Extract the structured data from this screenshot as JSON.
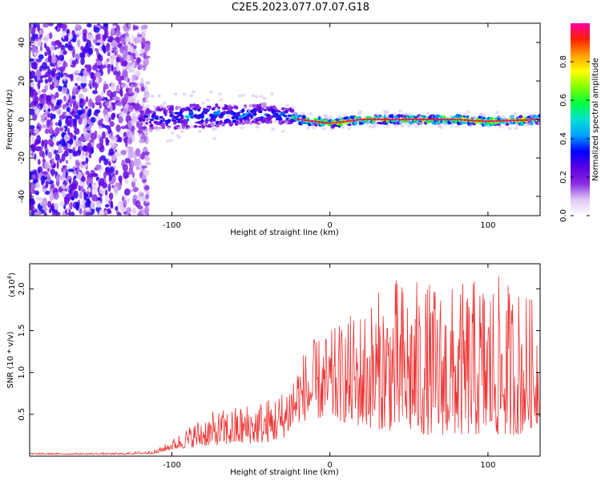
{
  "figure": {
    "title": "C2E5.2023.077.07.07.G18"
  },
  "chart_data": [
    {
      "type": "heatmap",
      "name": "spectrogram",
      "xlabel": "Height of straight line (km)",
      "ylabel": "Frequency (Hz)",
      "xlim": [
        -190,
        133
      ],
      "ylim": [
        -50,
        50
      ],
      "xticks": [
        -100,
        0,
        100
      ],
      "yticks": [
        -40,
        -20,
        0,
        20,
        40
      ],
      "grid": false,
      "colorbar": {
        "label": "Normalized spectral amplitude",
        "range": [
          0.0,
          1.0
        ],
        "ticks": [
          0.0,
          0.2,
          0.4,
          0.6,
          0.8
        ],
        "tick_labels": [
          "0.0",
          "0.2",
          "0.4",
          "0.6",
          "0.8"
        ],
        "colors": [
          "#ffffff",
          "#ddc8f4",
          "#8a2be2",
          "#5a00e0",
          "#0000ff",
          "#00a0ff",
          "#00e0d0",
          "#00ff40",
          "#80ff00",
          "#ffff00",
          "#ffa000",
          "#ff2000",
          "#ff00a0"
        ]
      },
      "signal": [
        {
          "x": -120,
          "center_hz": 0,
          "halfwidth_hz": 6,
          "amp": 0.3
        },
        {
          "x": -100,
          "center_hz": 1,
          "halfwidth_hz": 6,
          "amp": 0.4
        },
        {
          "x": -80,
          "center_hz": 2,
          "halfwidth_hz": 6,
          "amp": 0.45
        },
        {
          "x": -60,
          "center_hz": 2,
          "halfwidth_hz": 5,
          "amp": 0.45
        },
        {
          "x": -40,
          "center_hz": 3,
          "halfwidth_hz": 5,
          "amp": 0.4
        },
        {
          "x": -25,
          "center_hz": 2,
          "halfwidth_hz": 4,
          "amp": 0.45
        },
        {
          "x": -20,
          "center_hz": 0,
          "halfwidth_hz": 2,
          "amp": 0.75
        },
        {
          "x": 0,
          "center_hz": -2,
          "halfwidth_hz": 2,
          "amp": 0.85
        },
        {
          "x": 20,
          "center_hz": 0,
          "halfwidth_hz": 2,
          "amp": 0.85
        },
        {
          "x": 40,
          "center_hz": 0,
          "halfwidth_hz": 2,
          "amp": 0.85
        },
        {
          "x": 60,
          "center_hz": 0,
          "halfwidth_hz": 2,
          "amp": 0.85
        },
        {
          "x": 80,
          "center_hz": 0,
          "halfwidth_hz": 2,
          "amp": 0.85
        },
        {
          "x": 100,
          "center_hz": -1,
          "halfwidth_hz": 2,
          "amp": 0.85
        },
        {
          "x": 133,
          "center_hz": 0,
          "halfwidth_hz": 2,
          "amp": 0.85
        }
      ],
      "noise_region": [
        -190,
        -115
      ]
    },
    {
      "type": "line",
      "name": "snr",
      "xlabel": "Height of straight line (km)",
      "ylabel": "SNR (10 * v/v)",
      "y_scale_label": "(x10",
      "y_scale_exponent": "4",
      "xlim": [
        -190,
        133
      ],
      "ylim": [
        0,
        2.3
      ],
      "xticks": [
        -100,
        0,
        100
      ],
      "yticks": [
        0.5,
        1.0,
        1.5,
        2.0
      ],
      "ytick_labels": [
        "0.5",
        "1.0",
        "1.5",
        "2.0"
      ],
      "grid": false,
      "line_color": "#ee3333",
      "envelope": {
        "x": [
          -190,
          -130,
          -110,
          -100,
          -90,
          -80,
          -60,
          -40,
          -30,
          -25,
          -20,
          -10,
          0,
          10,
          20,
          40,
          60,
          80,
          100,
          120,
          133
        ],
        "low": [
          0.02,
          0.02,
          0.03,
          0.08,
          0.1,
          0.12,
          0.14,
          0.16,
          0.2,
          0.3,
          0.4,
          0.45,
          0.45,
          0.4,
          0.35,
          0.3,
          0.25,
          0.25,
          0.25,
          0.25,
          0.4
        ],
        "high": [
          0.04,
          0.04,
          0.08,
          0.2,
          0.35,
          0.5,
          0.6,
          0.7,
          0.8,
          1.0,
          1.2,
          1.4,
          1.5,
          1.65,
          1.8,
          2.15,
          2.1,
          2.05,
          2.2,
          2.05,
          1.8
        ]
      }
    }
  ]
}
